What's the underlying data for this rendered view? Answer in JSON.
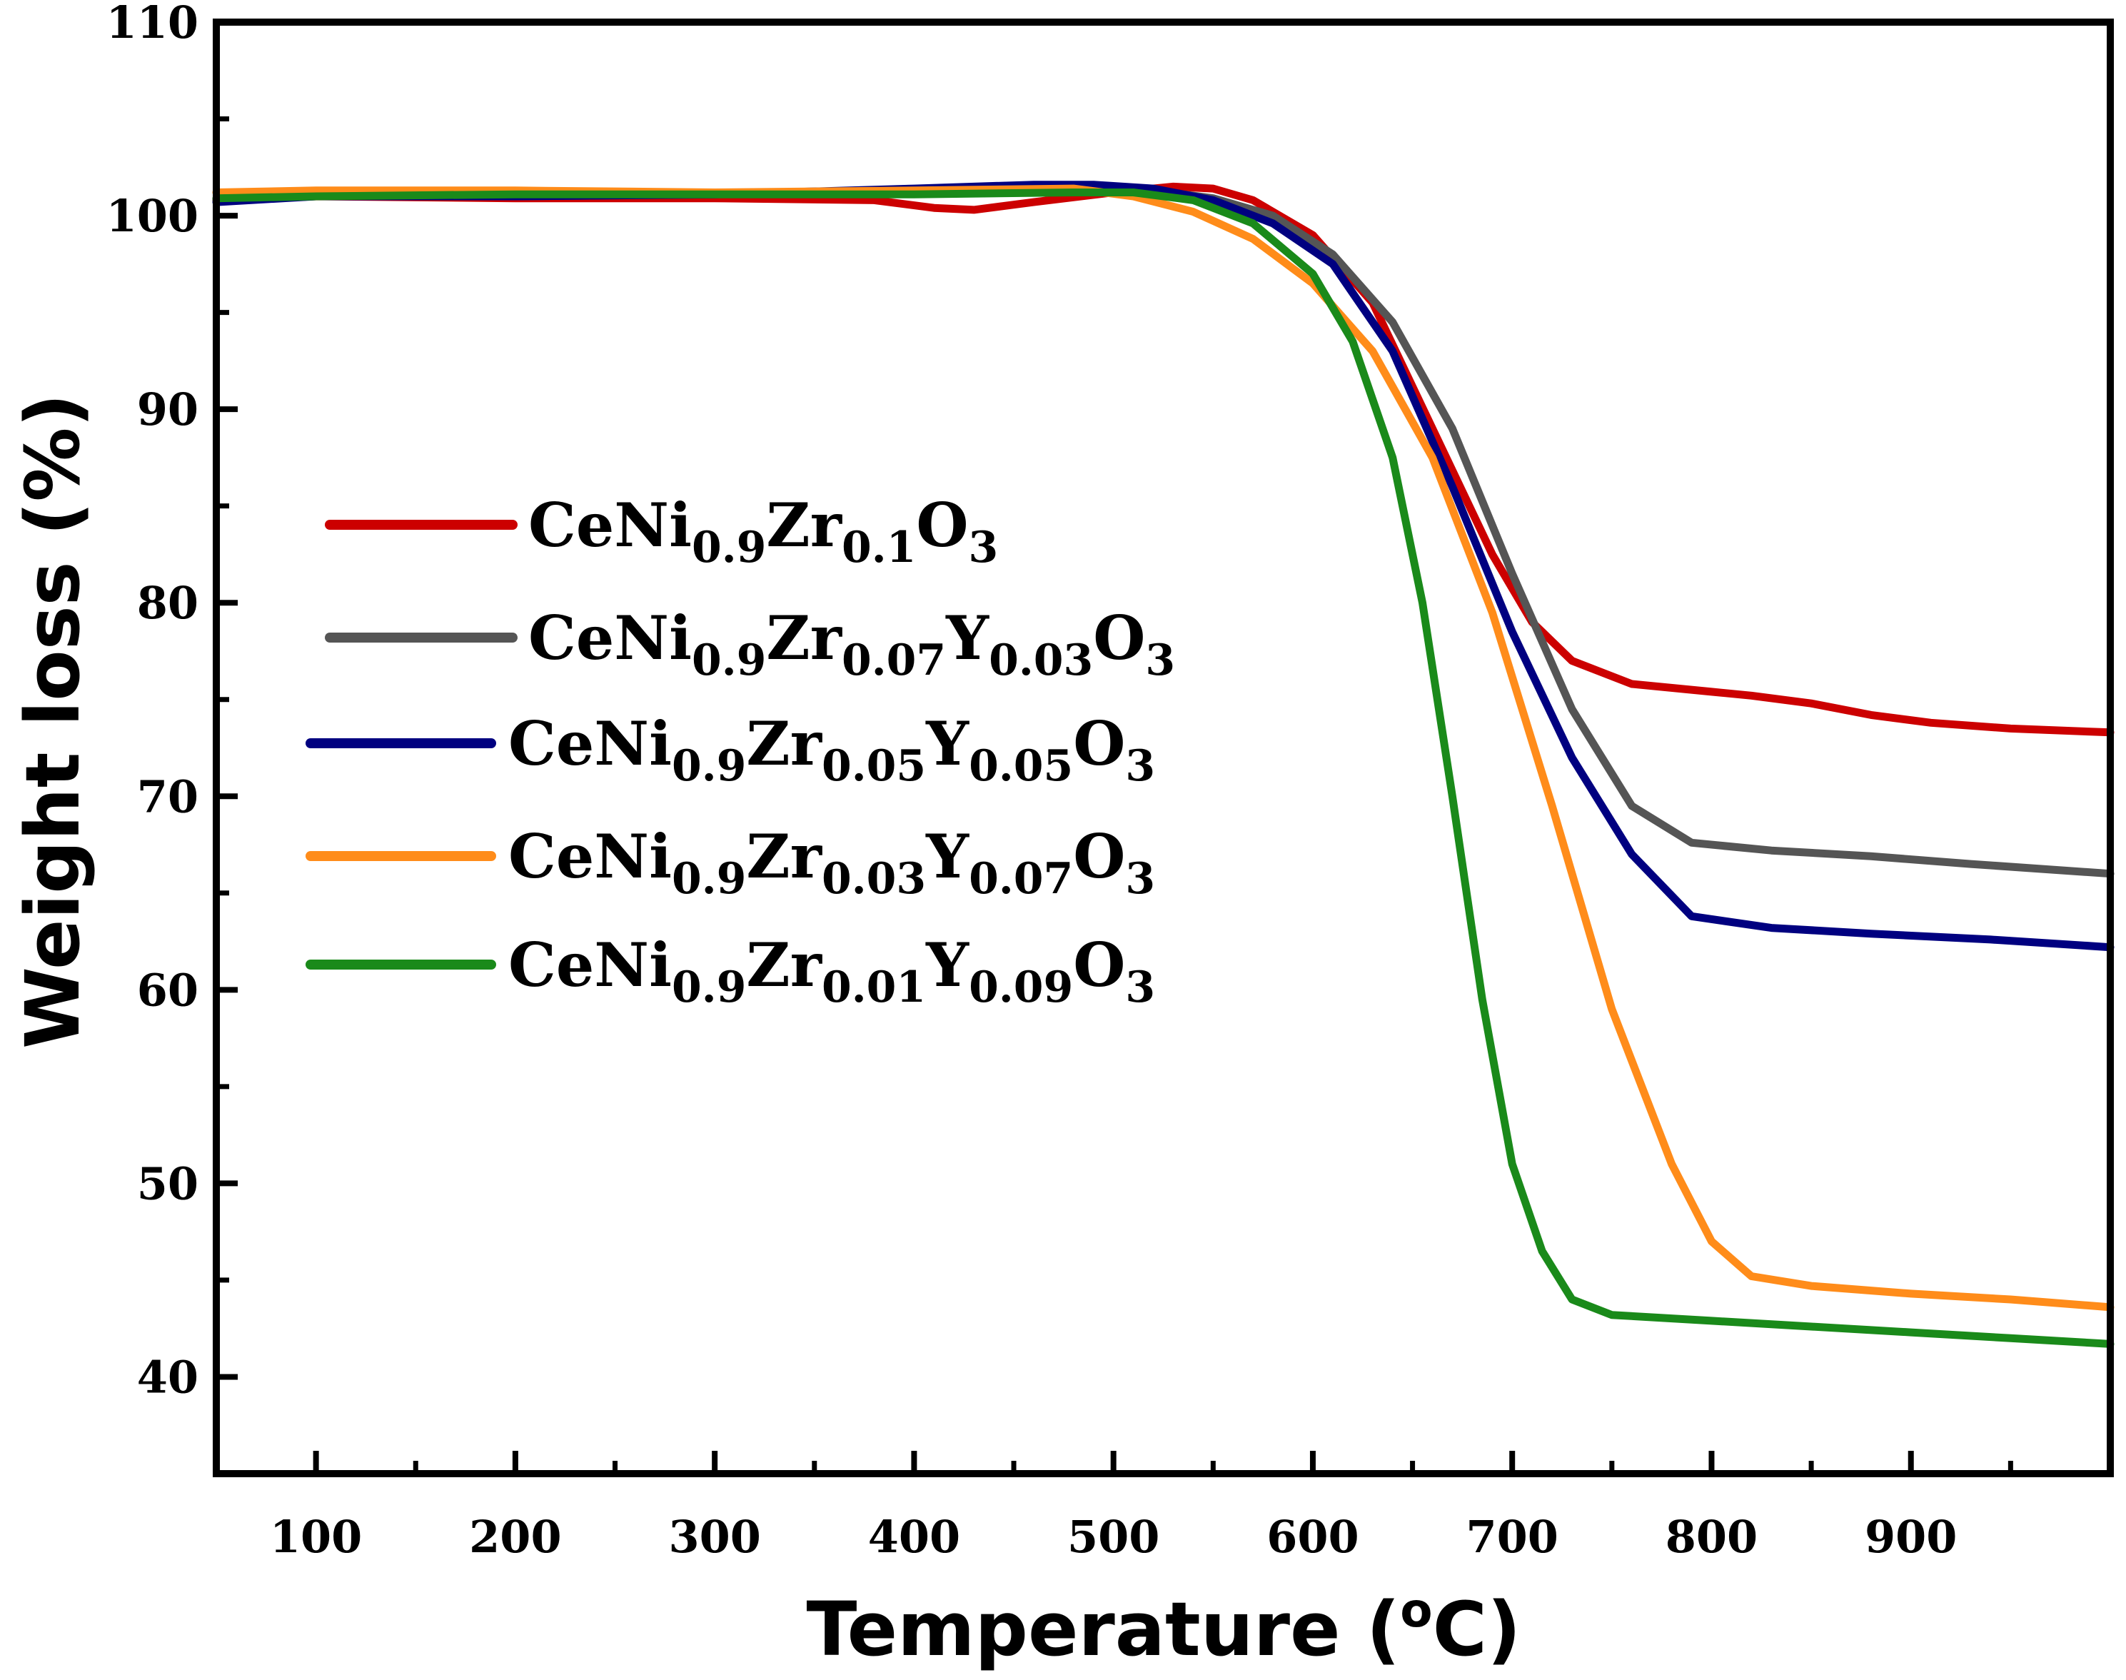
{
  "chart_data": {
    "type": "line",
    "title": "",
    "xlabel": "Temperature (",
    "xlabel_sup": "o",
    "xlabel_end": "C)",
    "ylabel": "Weight loss (%)",
    "xlim": [
      50,
      1000
    ],
    "ylim": [
      35,
      110
    ],
    "xticks": [
      100,
      200,
      300,
      400,
      500,
      600,
      700,
      800,
      900
    ],
    "yticks": [
      40,
      50,
      60,
      70,
      80,
      90,
      100,
      110
    ],
    "grid": false,
    "legend_position": "left-middle",
    "series": [
      {
        "name": "CeNi0.9Zr0.1O3",
        "label_parts": [
          [
            "CeNi",
            ""
          ],
          [
            "0.9",
            "sub"
          ],
          [
            "Zr",
            ""
          ],
          [
            "0.1",
            "sub"
          ],
          [
            "O",
            ""
          ],
          [
            "3",
            "sub"
          ]
        ],
        "color": "#cc0000",
        "points": [
          [
            50,
            100.8
          ],
          [
            100,
            101.0
          ],
          [
            200,
            100.9
          ],
          [
            300,
            100.9
          ],
          [
            380,
            100.8
          ],
          [
            410,
            100.4
          ],
          [
            430,
            100.3
          ],
          [
            460,
            100.7
          ],
          [
            500,
            101.2
          ],
          [
            530,
            101.5
          ],
          [
            550,
            101.4
          ],
          [
            570,
            100.8
          ],
          [
            600,
            99.0
          ],
          [
            630,
            95.5
          ],
          [
            660,
            89.0
          ],
          [
            690,
            82.5
          ],
          [
            710,
            79.0
          ],
          [
            730,
            77.0
          ],
          [
            760,
            75.8
          ],
          [
            800,
            75.4
          ],
          [
            820,
            75.2
          ],
          [
            850,
            74.8
          ],
          [
            880,
            74.2
          ],
          [
            910,
            73.8
          ],
          [
            950,
            73.5
          ],
          [
            1000,
            73.3
          ]
        ]
      },
      {
        "name": "CeNi0.9Zr0.07Y0.03O3",
        "label_parts": [
          [
            "CeNi",
            ""
          ],
          [
            "0.9",
            "sub"
          ],
          [
            "Zr",
            ""
          ],
          [
            "0.07",
            "sub"
          ],
          [
            "Y",
            ""
          ],
          [
            "0.03",
            "sub"
          ],
          [
            "O",
            ""
          ],
          [
            "3",
            "sub"
          ]
        ],
        "color": "#555555",
        "points": [
          [
            50,
            100.8
          ],
          [
            100,
            101.0
          ],
          [
            200,
            101.0
          ],
          [
            300,
            101.1
          ],
          [
            400,
            101.3
          ],
          [
            480,
            101.5
          ],
          [
            520,
            101.3
          ],
          [
            550,
            100.9
          ],
          [
            580,
            100.0
          ],
          [
            610,
            98.0
          ],
          [
            640,
            94.5
          ],
          [
            670,
            89.0
          ],
          [
            700,
            81.5
          ],
          [
            730,
            74.5
          ],
          [
            760,
            69.5
          ],
          [
            790,
            67.6
          ],
          [
            830,
            67.2
          ],
          [
            880,
            66.9
          ],
          [
            930,
            66.5
          ],
          [
            1000,
            66.0
          ]
        ]
      },
      {
        "name": "CeNi0.9Zr0.05Y0.05O3",
        "label_parts": [
          [
            "CeNi",
            ""
          ],
          [
            "0.9",
            "sub"
          ],
          [
            "Zr",
            ""
          ],
          [
            "0.05",
            "sub"
          ],
          [
            "Y",
            ""
          ],
          [
            "0.05",
            "sub"
          ],
          [
            "O",
            ""
          ],
          [
            "3",
            "sub"
          ]
        ],
        "color": "#000080",
        "points": [
          [
            50,
            100.7
          ],
          [
            100,
            101.0
          ],
          [
            200,
            101.0
          ],
          [
            300,
            101.1
          ],
          [
            400,
            101.4
          ],
          [
            460,
            101.6
          ],
          [
            490,
            101.6
          ],
          [
            520,
            101.4
          ],
          [
            550,
            100.8
          ],
          [
            580,
            99.6
          ],
          [
            610,
            97.5
          ],
          [
            640,
            93.0
          ],
          [
            670,
            86.0
          ],
          [
            700,
            78.5
          ],
          [
            730,
            72.0
          ],
          [
            760,
            67.0
          ],
          [
            790,
            63.8
          ],
          [
            830,
            63.2
          ],
          [
            880,
            62.9
          ],
          [
            940,
            62.6
          ],
          [
            1000,
            62.2
          ]
        ]
      },
      {
        "name": "CeNi0.9Zr0.03Y0.07O3",
        "label_parts": [
          [
            "CeNi",
            ""
          ],
          [
            "0.9",
            "sub"
          ],
          [
            "Zr",
            ""
          ],
          [
            "0.03",
            "sub"
          ],
          [
            "Y",
            ""
          ],
          [
            "0.07",
            "sub"
          ],
          [
            "O",
            ""
          ],
          [
            "3",
            "sub"
          ]
        ],
        "color": "#ff8c1a",
        "points": [
          [
            50,
            101.2
          ],
          [
            100,
            101.3
          ],
          [
            200,
            101.3
          ],
          [
            300,
            101.2
          ],
          [
            400,
            101.3
          ],
          [
            480,
            101.4
          ],
          [
            510,
            101.0
          ],
          [
            540,
            100.2
          ],
          [
            570,
            98.8
          ],
          [
            600,
            96.5
          ],
          [
            630,
            93.0
          ],
          [
            660,
            87.5
          ],
          [
            690,
            79.5
          ],
          [
            720,
            69.5
          ],
          [
            750,
            59.0
          ],
          [
            780,
            51.0
          ],
          [
            800,
            47.0
          ],
          [
            820,
            45.2
          ],
          [
            850,
            44.7
          ],
          [
            900,
            44.3
          ],
          [
            950,
            44.0
          ],
          [
            1000,
            43.6
          ]
        ]
      },
      {
        "name": "CeNi0.9Zr0.01Y0.09O3",
        "label_parts": [
          [
            "CeNi",
            ""
          ],
          [
            "0.9",
            "sub"
          ],
          [
            "Zr",
            ""
          ],
          [
            "0.01",
            "sub"
          ],
          [
            "Y",
            ""
          ],
          [
            "0.09",
            "sub"
          ],
          [
            "O",
            ""
          ],
          [
            "3",
            "sub"
          ]
        ],
        "color": "#1a8a1a",
        "points": [
          [
            50,
            100.9
          ],
          [
            100,
            101.0
          ],
          [
            200,
            101.1
          ],
          [
            300,
            101.1
          ],
          [
            400,
            101.1
          ],
          [
            480,
            101.2
          ],
          [
            510,
            101.2
          ],
          [
            540,
            100.8
          ],
          [
            570,
            99.6
          ],
          [
            600,
            97.0
          ],
          [
            620,
            93.5
          ],
          [
            640,
            87.5
          ],
          [
            655,
            80.0
          ],
          [
            670,
            70.0
          ],
          [
            685,
            59.5
          ],
          [
            700,
            51.0
          ],
          [
            715,
            46.5
          ],
          [
            730,
            44.0
          ],
          [
            750,
            43.2
          ],
          [
            800,
            42.9
          ],
          [
            850,
            42.6
          ],
          [
            900,
            42.3
          ],
          [
            950,
            42.0
          ],
          [
            1000,
            41.7
          ]
        ]
      }
    ]
  }
}
